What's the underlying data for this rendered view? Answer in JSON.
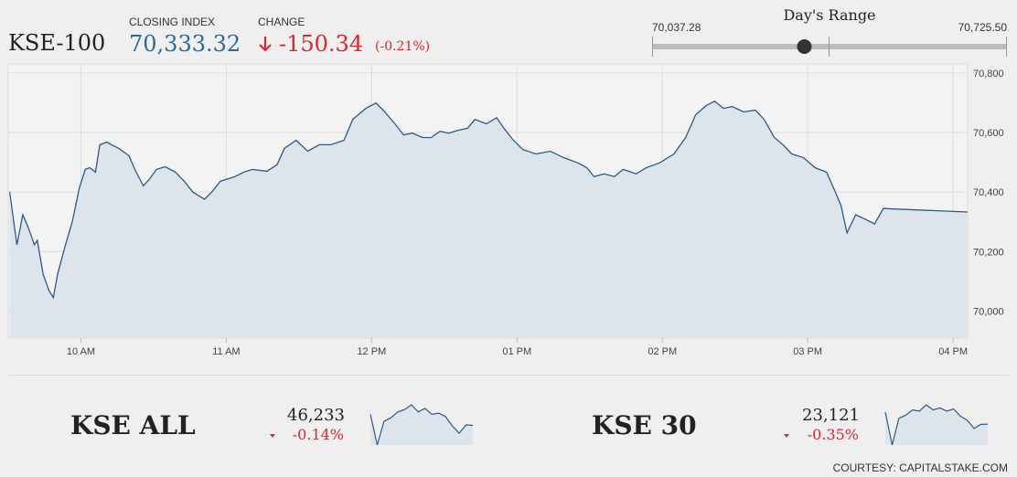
{
  "header": {
    "index_name": "KSE-100",
    "closing_label": "CLOSING INDEX",
    "closing_index": {
      "value": 70333.32,
      "label": "70,333.32"
    },
    "change_label": "CHANGE",
    "change": "-150.34",
    "change_percent": "(-0.21%)"
  },
  "day_range": {
    "title": "Day's Range",
    "low": {
      "value": 70037.28,
      "label": "70,037.28"
    },
    "high": {
      "value": 70725.5,
      "label": "70,725.50"
    }
  },
  "chart_data": {
    "type": "line",
    "color": "#2e5a88",
    "fill_color": "#dde4ec",
    "grid": true,
    "x": [
      9.51,
      9.56,
      9.6,
      9.64,
      9.68,
      9.7,
      9.74,
      9.78,
      9.81,
      9.84,
      9.89,
      9.94,
      9.99,
      10.03,
      10.06,
      10.1,
      10.13,
      10.18,
      10.21,
      10.26,
      10.33,
      10.38,
      10.43,
      10.47,
      10.52,
      10.58,
      10.65,
      10.71,
      10.77,
      10.85,
      10.9,
      10.96,
      11.06,
      11.12,
      11.18,
      11.28,
      11.35,
      11.4,
      11.48,
      11.56,
      11.64,
      11.72,
      11.81,
      11.87,
      11.96,
      12.03,
      12.09,
      12.16,
      12.22,
      12.28,
      12.35,
      12.41,
      12.47,
      12.53,
      12.6,
      12.66,
      12.71,
      12.79,
      12.86,
      12.91,
      12.97,
      13.04,
      13.13,
      13.23,
      13.32,
      13.42,
      13.48,
      13.53,
      13.6,
      13.67,
      13.73,
      13.82,
      13.89,
      13.98,
      14.08,
      14.16,
      14.23,
      14.3,
      14.36,
      14.42,
      14.48,
      14.56,
      14.64,
      14.7,
      14.77,
      14.83,
      14.89,
      14.97,
      15.05,
      15.13,
      15.19,
      15.23,
      15.27,
      15.33,
      15.4,
      15.46,
      15.52,
      16.1
    ],
    "values": [
      70400,
      70223,
      70324,
      70278,
      70223,
      70238,
      70125,
      70070,
      70046,
      70125,
      70217,
      70299,
      70415,
      70476,
      70482,
      70467,
      70559,
      70568,
      70559,
      70547,
      70522,
      70467,
      70421,
      70443,
      70476,
      70485,
      70467,
      70437,
      70400,
      70376,
      70400,
      70437,
      70452,
      70467,
      70476,
      70470,
      70492,
      70547,
      70574,
      70537,
      70559,
      70559,
      70574,
      70644,
      70681,
      70699,
      70669,
      70629,
      70592,
      70598,
      70583,
      70583,
      70604,
      70598,
      70608,
      70614,
      70644,
      70629,
      70650,
      70614,
      70577,
      70543,
      70528,
      70537,
      70516,
      70498,
      70482,
      70452,
      70461,
      70452,
      70476,
      70461,
      70482,
      70498,
      70528,
      70583,
      70660,
      70690,
      70705,
      70681,
      70687,
      70669,
      70675,
      70644,
      70583,
      70559,
      70528,
      70516,
      70482,
      70467,
      70400,
      70354,
      70263,
      70324,
      70308,
      70293,
      70345,
      70333.32
    ],
    "xlim": [
      9.5,
      16.1
    ],
    "ylim": [
      69910,
      70830
    ],
    "xticks": [
      {
        "value": 10,
        "label": "10 AM"
      },
      {
        "value": 11,
        "label": "11 AM"
      },
      {
        "value": 12,
        "label": "12 PM"
      },
      {
        "value": 13,
        "label": "01 PM"
      },
      {
        "value": 14,
        "label": "02 PM"
      },
      {
        "value": 15,
        "label": "03 PM"
      },
      {
        "value": 16,
        "label": "04 PM"
      }
    ],
    "yticks": [
      {
        "value": 70000,
        "label": "70,000"
      },
      {
        "value": 70200,
        "label": "70,200"
      },
      {
        "value": 70400,
        "label": "70,400"
      },
      {
        "value": 70600,
        "label": "70,600"
      },
      {
        "value": 70800,
        "label": "70,800"
      }
    ]
  },
  "indices": [
    {
      "name": "KSE ALL",
      "value": "46,233",
      "change": "-0.14%",
      "color": "#2e5a88",
      "values": [
        46280,
        46150,
        46250,
        46265,
        46290,
        46300,
        46320,
        46290,
        46305,
        46280,
        46285,
        46270,
        46230,
        46200,
        46235,
        46233
      ]
    },
    {
      "name": "KSE 30",
      "value": "23,121",
      "change": "-0.35%",
      "color": "#2e5a88",
      "values": [
        23180,
        23020,
        23150,
        23165,
        23190,
        23185,
        23215,
        23190,
        23200,
        23185,
        23195,
        23160,
        23140,
        23100,
        23120,
        23121
      ]
    }
  ],
  "footer": "COURTESY: CAPITALSTAKE.COM"
}
